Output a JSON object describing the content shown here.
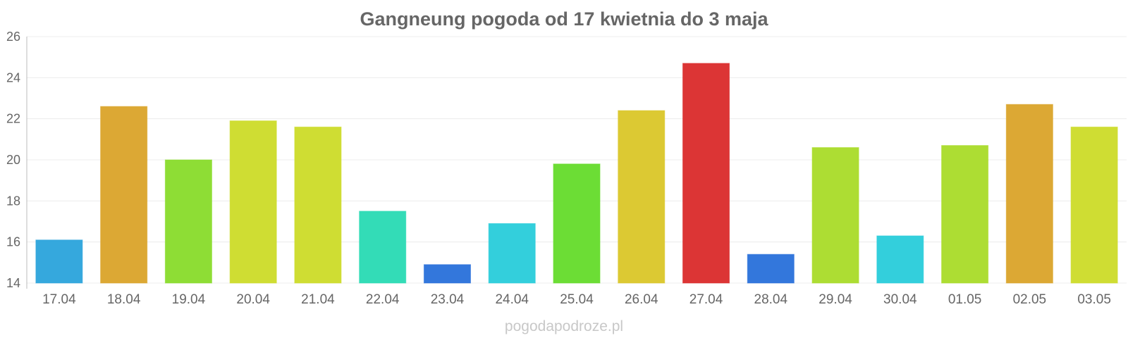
{
  "chart_data": {
    "type": "bar",
    "title": "Gangneung pogoda od 17 kwietnia do 3 maja",
    "categories": [
      "17.04",
      "18.04",
      "19.04",
      "20.04",
      "21.04",
      "22.04",
      "23.04",
      "24.04",
      "25.04",
      "26.04",
      "27.04",
      "28.04",
      "29.04",
      "30.04",
      "01.05",
      "02.05",
      "03.05"
    ],
    "values": [
      16.1,
      22.6,
      20.0,
      21.9,
      21.6,
      17.5,
      14.9,
      16.9,
      19.8,
      22.4,
      24.7,
      15.4,
      20.6,
      16.3,
      20.7,
      22.7,
      21.6
    ],
    "colors": [
      "#35a8dd",
      "#dca834",
      "#8edd35",
      "#cfdd33",
      "#cfdd33",
      "#33dcb7",
      "#3377dc",
      "#33cfdc",
      "#6cdd35",
      "#dcc933",
      "#dc3535",
      "#3377dc",
      "#addd33",
      "#33cfdc",
      "#addd33",
      "#dca834",
      "#cfdd33"
    ],
    "ylim": [
      14,
      26
    ],
    "yticks": [
      14,
      16,
      18,
      20,
      22,
      24,
      26
    ],
    "grid": true,
    "legend": "none",
    "xlabel": "",
    "ylabel": ""
  },
  "watermark": "pogodapodroze.pl"
}
